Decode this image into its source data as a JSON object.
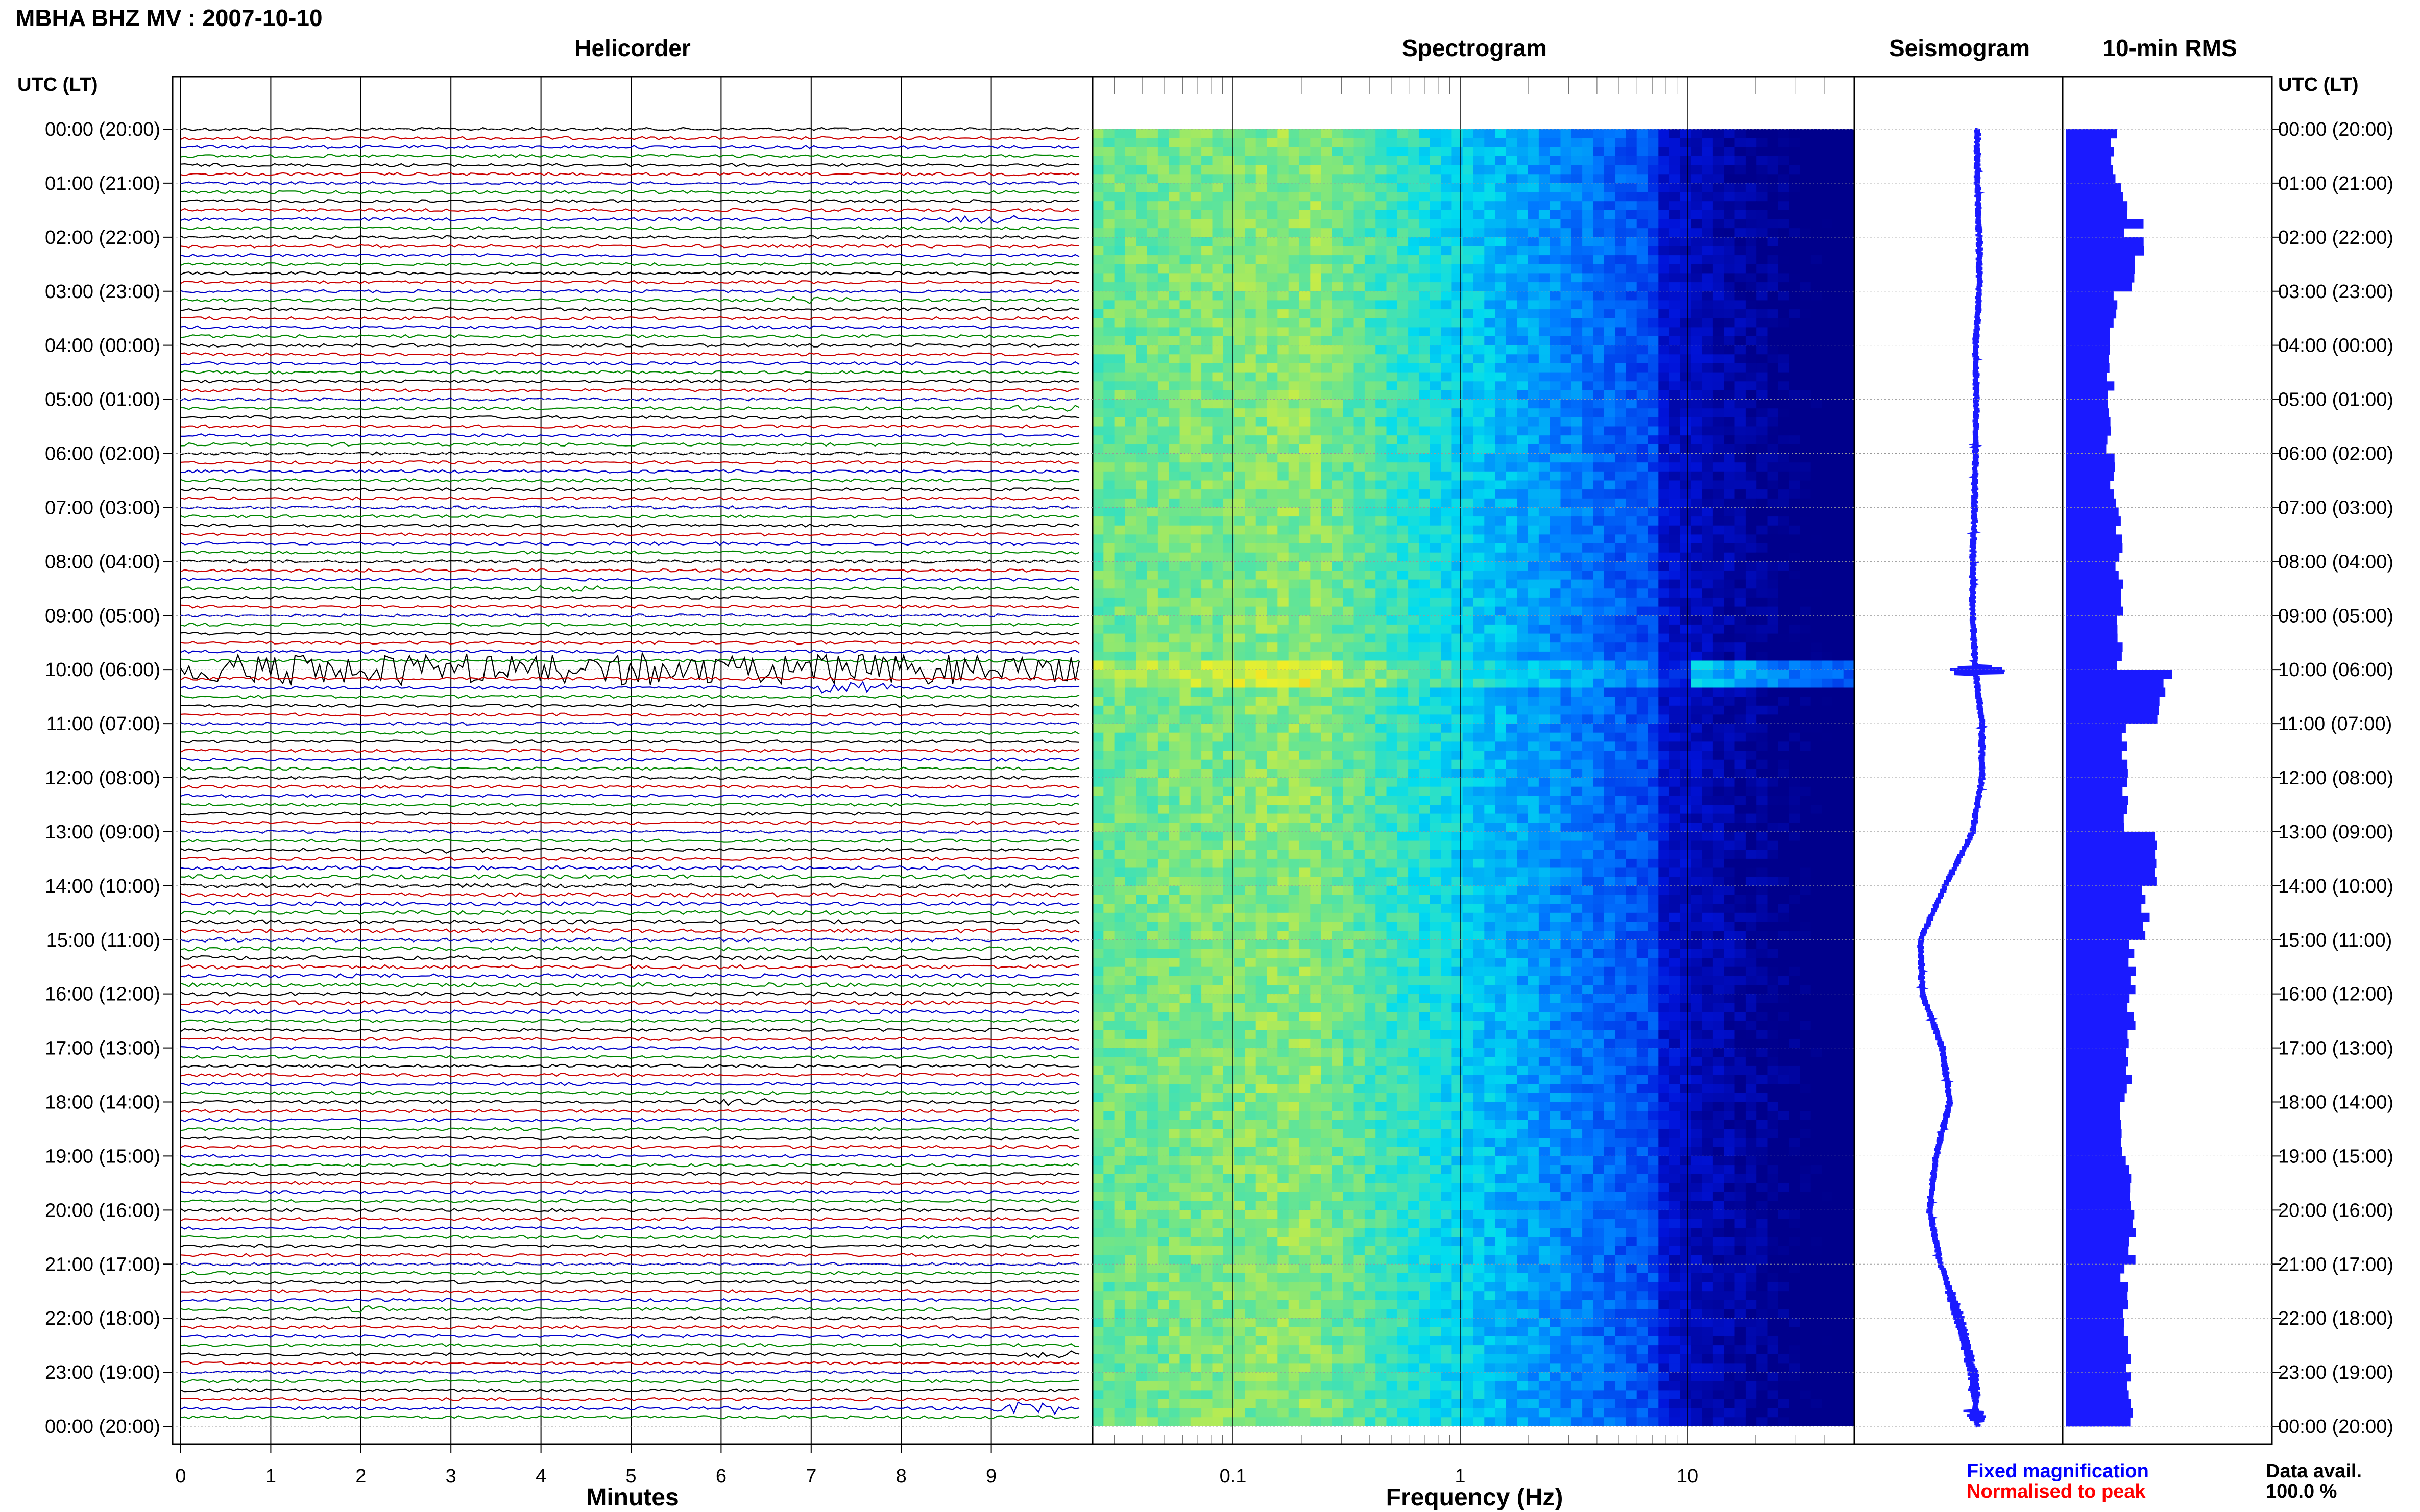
{
  "title": "MBHA BHZ MV : 2007-10-10",
  "panels": {
    "helicorder": "Helicorder",
    "spectrogram": "Spectrogram",
    "seismogram": "Seismogram",
    "rms": "10-min RMS"
  },
  "time_axis_label": "UTC (LT)",
  "time_ticks": [
    "00:00 (20:00)",
    "01:00 (21:00)",
    "02:00 (22:00)",
    "03:00 (23:00)",
    "04:00 (00:00)",
    "05:00 (01:00)",
    "06:00 (02:00)",
    "07:00 (03:00)",
    "08:00 (04:00)",
    "09:00 (05:00)",
    "10:00 (06:00)",
    "11:00 (07:00)",
    "12:00 (08:00)",
    "13:00 (09:00)",
    "14:00 (10:00)",
    "15:00 (11:00)",
    "16:00 (12:00)",
    "17:00 (13:00)",
    "18:00 (14:00)",
    "19:00 (15:00)",
    "20:00 (16:00)",
    "21:00 (17:00)",
    "22:00 (18:00)",
    "23:00 (19:00)",
    "00:00 (20:00)"
  ],
  "minutes_ticks": [
    "0",
    "1",
    "2",
    "3",
    "4",
    "5",
    "6",
    "7",
    "8",
    "9"
  ],
  "minutes_label": "Minutes",
  "freq_ticks": [
    "0.1",
    "1",
    "10"
  ],
  "freq_label": "Frequency (Hz)",
  "legend": {
    "fixed": "Fixed magnification",
    "normalised": "Normalised to peak",
    "avail_label": "Data avail.",
    "avail_value": "100.0 %"
  },
  "colors": {
    "trace_cycle": [
      "#000000",
      "#cc0000",
      "#0000cc",
      "#008800"
    ],
    "seismogram": "#1a1aff",
    "rms": "#1a1aff",
    "fixed_text": "#0000ff",
    "normalised_text": "#ff0000"
  },
  "chart_data": [
    {
      "type": "line",
      "panel": "Helicorder",
      "xlabel": "Minutes",
      "xlim": [
        0,
        10
      ],
      "rows": 144,
      "row_minutes": 10,
      "events": [
        {
          "hour": 1.7,
          "minute": 8.9,
          "amp": 1.5
        },
        {
          "hour": 3.1,
          "minute": 7.0,
          "amp": 1.2
        },
        {
          "hour": 5.2,
          "minute": 9.6,
          "amp": 1.0
        },
        {
          "hour": 8.5,
          "minute": 4.3,
          "amp": 1.2
        },
        {
          "hour": 10.0,
          "minute": 5.0,
          "amp": 6.0
        },
        {
          "hour": 10.3,
          "minute": 7.5,
          "amp": 2.0
        },
        {
          "hour": 13.3,
          "minute": 3.1,
          "amp": 1.0
        },
        {
          "hour": 18.0,
          "minute": 6.1,
          "amp": 1.2
        },
        {
          "hour": 21.8,
          "minute": 2.0,
          "amp": 1.0
        },
        {
          "hour": 22.6,
          "minute": 9.6,
          "amp": 1.5
        },
        {
          "hour": 23.7,
          "minute": 9.4,
          "amp": 2.5
        }
      ]
    },
    {
      "type": "heatmap",
      "panel": "Spectrogram",
      "xlabel": "Frequency (Hz)",
      "xscale": "log",
      "xlim": [
        0.03,
        50
      ],
      "ylim_hours": [
        0,
        24
      ]
    },
    {
      "type": "line",
      "panel": "Seismogram",
      "x_rel_minus1_to_1": [
        0.0,
        0.0,
        0.02,
        0.02,
        -0.02,
        -0.01,
        -0.02,
        -0.03,
        -0.05,
        -0.05,
        -0.02,
        0.05,
        0.05,
        -0.05,
        -0.35,
        -0.62,
        -0.6,
        -0.38,
        -0.3,
        -0.45,
        -0.52,
        -0.4,
        -0.2,
        -0.05,
        0.0
      ],
      "hours": [
        0,
        1,
        2,
        3,
        4,
        5,
        6,
        7,
        8,
        9,
        10,
        11,
        12,
        13,
        14,
        15,
        16,
        17,
        18,
        19,
        20,
        21,
        22,
        23,
        24
      ]
    },
    {
      "type": "bar",
      "panel": "10-min RMS",
      "orientation": "horizontal",
      "unit": "relative",
      "bins": 144,
      "hourly_levels": [
        0.45,
        0.55,
        0.62,
        0.45,
        0.42,
        0.42,
        0.45,
        0.5,
        0.5,
        0.52,
        0.9,
        0.55,
        0.55,
        0.85,
        0.75,
        0.62,
        0.62,
        0.58,
        0.52,
        0.58,
        0.62,
        0.55,
        0.58,
        0.6
      ]
    }
  ]
}
